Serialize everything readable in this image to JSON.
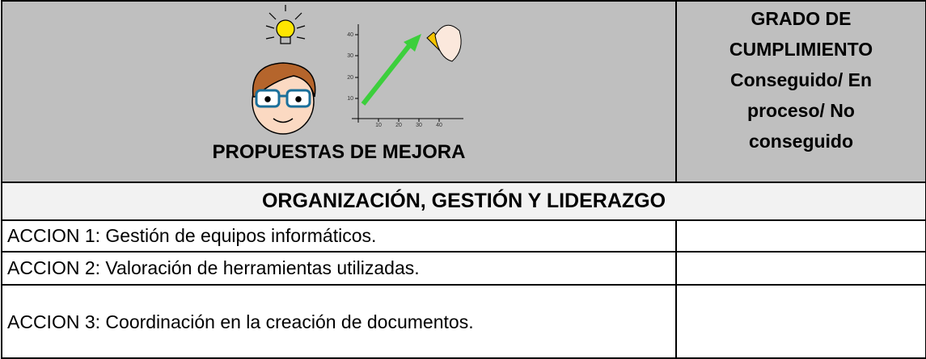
{
  "header": {
    "title": "PROPUESTAS DE MEJORA",
    "status_column": [
      "GRADO DE",
      "CUMPLIMIENTO",
      "Conseguido/ En",
      "proceso/ No",
      "conseguido"
    ],
    "illustration": {
      "x_ticks": [
        10,
        20,
        30,
        40
      ],
      "y_ticks": [
        10,
        20,
        30,
        40
      ]
    }
  },
  "section": {
    "title": "ORGANIZACIÓN, GESTIÓN Y LIDERAZGO"
  },
  "table": {
    "rows": [
      [
        "ACCION 1: Gestión de equipos informáticos.",
        ""
      ],
      [
        "ACCION 2: Valoración de herramientas utilizadas.",
        ""
      ],
      [
        "ACCION 3: Coordinación en la creación de documentos.",
        ""
      ]
    ]
  }
}
